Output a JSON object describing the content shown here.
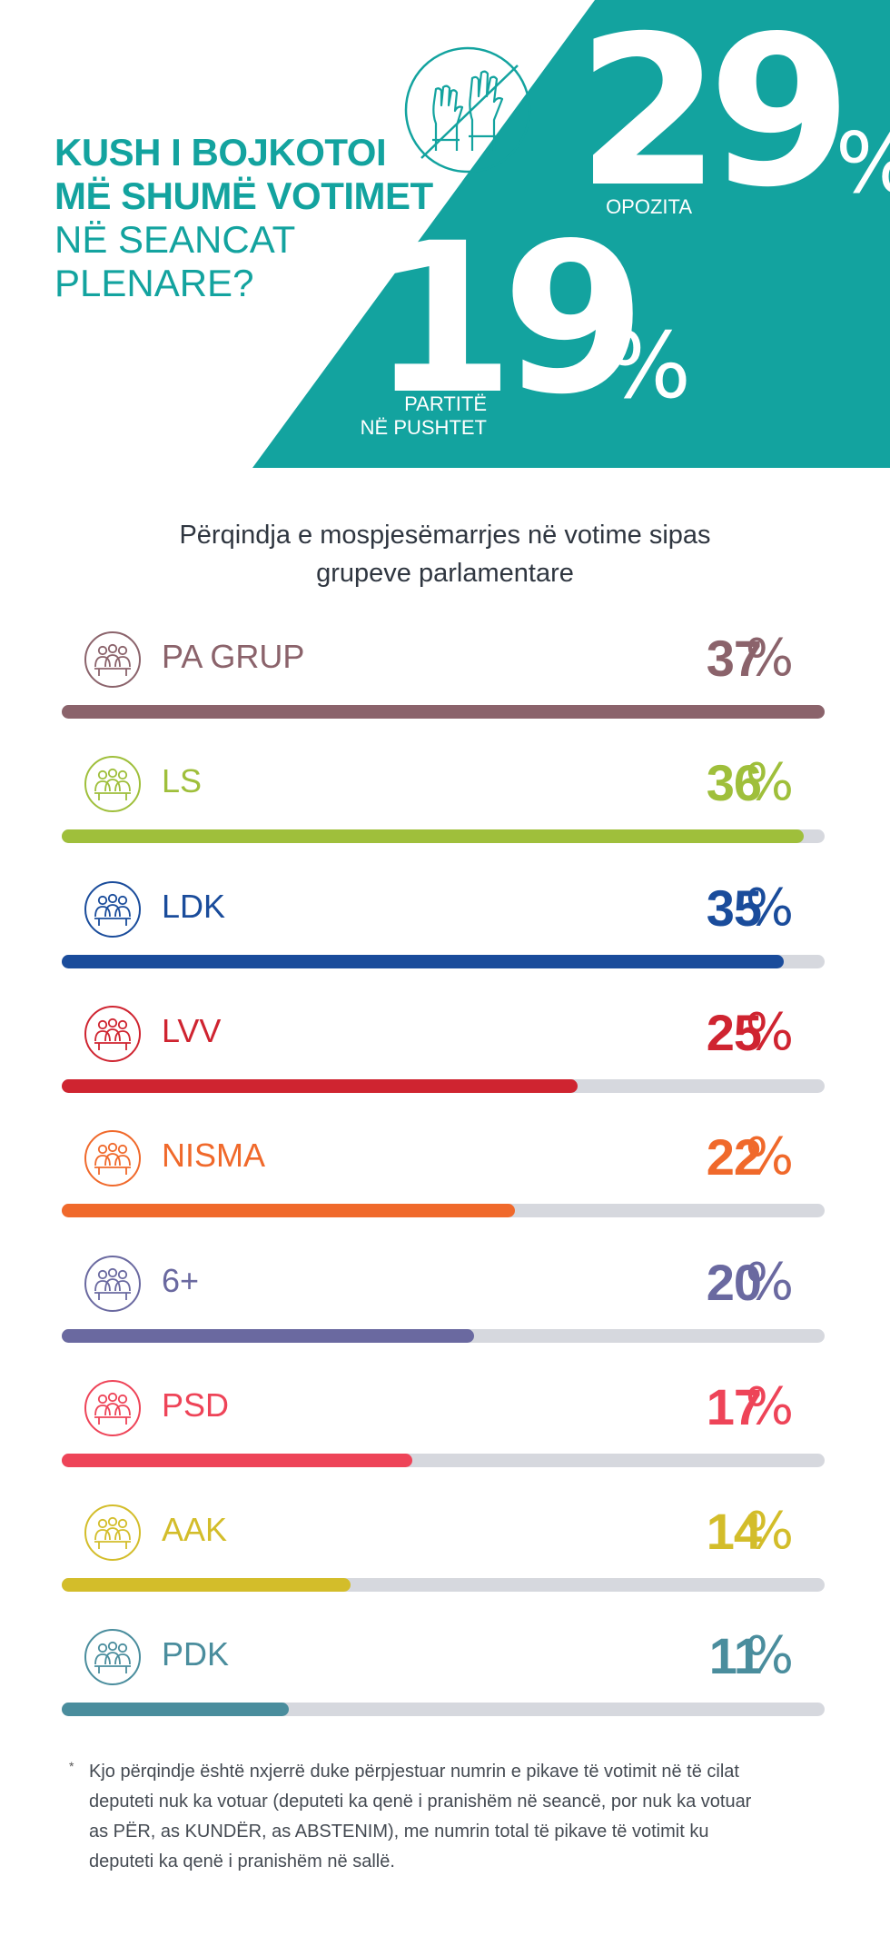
{
  "colors": {
    "teal": "#13a39f",
    "track": "#d6d8de"
  },
  "hero": {
    "title_line1": "KUSH I BOJKOTOI",
    "title_line2": "MË SHUMË VOTIMET",
    "title_line3": "NË SEANCAT",
    "title_line4": "PLENARE?",
    "icon": "raised-hands-crossed-icon",
    "opposition": {
      "value": "29",
      "unit": "%",
      "label": "OPOZITA"
    },
    "ruling": {
      "value": "19",
      "unit": "%",
      "label_line1": "PARTITË",
      "label_line2": "NË PUSHTET"
    }
  },
  "subtitle": {
    "line1": "Përqindja e mospjesëmarrjes në votime sipas",
    "line2": "grupeve parlamentare"
  },
  "chart_data": {
    "type": "bar",
    "orientation": "horizontal",
    "title": "Përqindja e mospjesëmarrjes në votime sipas grupeve parlamentare",
    "categories": [
      "PA GRUP",
      "LS",
      "LDK",
      "LVV",
      "NISMA",
      "6+",
      "PSD",
      "AAK",
      "PDK"
    ],
    "values": [
      37,
      36,
      35,
      25,
      22,
      20,
      17,
      14,
      11
    ],
    "unit": "%",
    "colors": [
      "#8b636b",
      "#9fbf3b",
      "#1a4c9b",
      "#cf2430",
      "#f0692b",
      "#6a69a0",
      "#ee4458",
      "#d3bd2a",
      "#4a8d9d"
    ],
    "xlim": [
      0,
      37
    ],
    "grid": false
  },
  "footnote": {
    "marker": "*",
    "lines": [
      "Kjo përqindje është nxjerrë duke përpjestuar numrin e pikave të votimit në të cilat",
      "deputeti nuk ka votuar (deputeti ka qenë i pranishëm në seancë, por nuk ka votuar",
      "as PËR, as KUNDËR, as ABSTENIM), me numrin total të pikave të votimit ku",
      "deputeti ka qenë i pranishëm në sallë."
    ]
  }
}
